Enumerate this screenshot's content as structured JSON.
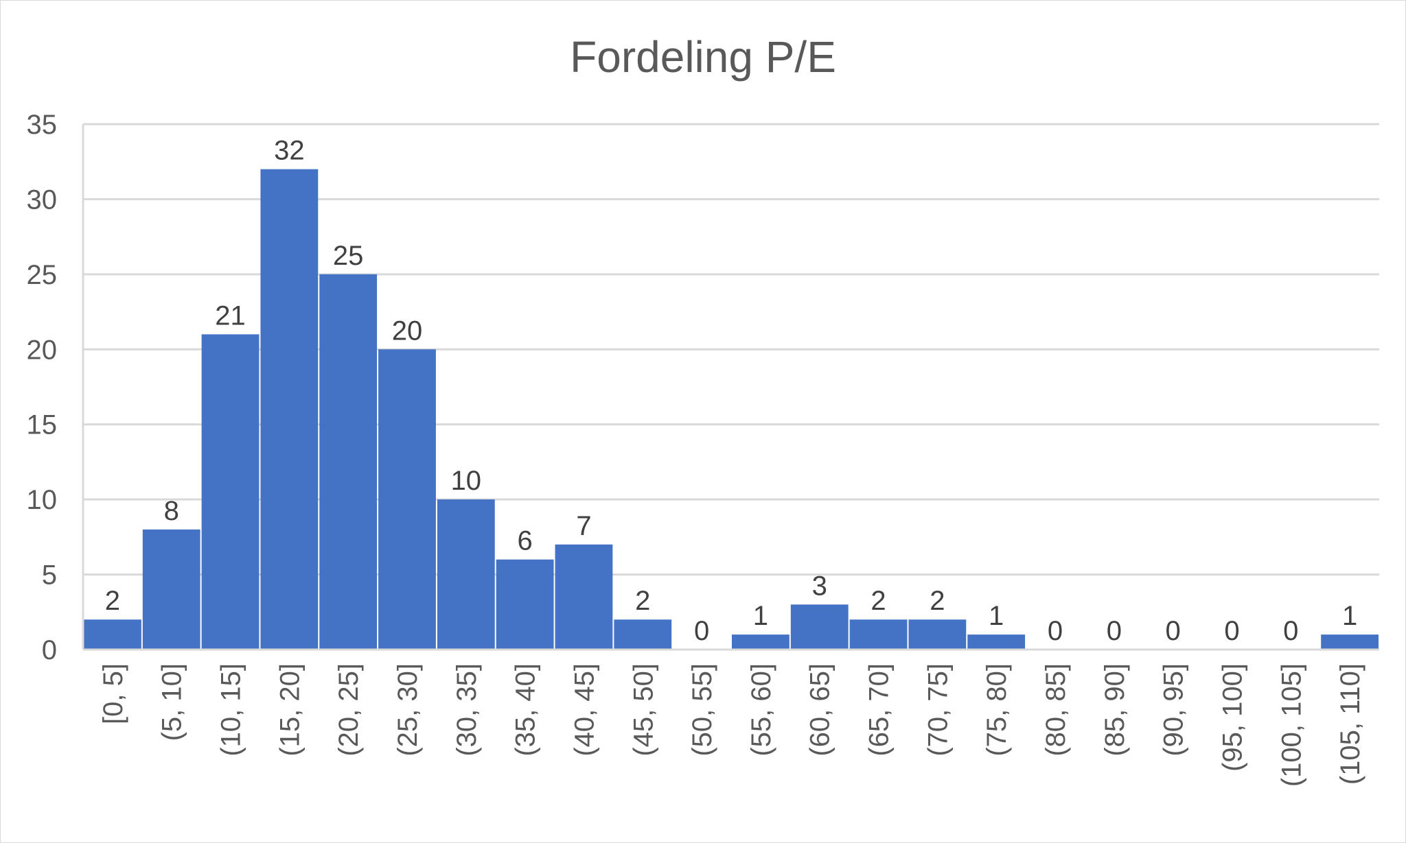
{
  "chart_data": {
    "type": "bar",
    "title": "Fordeling P/E",
    "xlabel": "",
    "ylabel": "",
    "categories": [
      "[0, 5]",
      "(5, 10]",
      "(10, 15]",
      "(15, 20]",
      "(20, 25]",
      "(25, 30]",
      "(30, 35]",
      "(35, 40]",
      "(40, 45]",
      "(45, 50]",
      "(50, 55]",
      "(55, 60]",
      "(60, 65]",
      "(65, 70]",
      "(70, 75]",
      "(75, 80]",
      "(80, 85]",
      "(85, 90]",
      "(90, 95]",
      "(95, 100]",
      "(100, 105]",
      "(105, 110]"
    ],
    "values": [
      2,
      8,
      21,
      32,
      25,
      20,
      10,
      6,
      7,
      2,
      0,
      1,
      3,
      2,
      2,
      1,
      0,
      0,
      0,
      0,
      0,
      1
    ],
    "ylim": [
      0,
      35
    ],
    "yticks": [
      0,
      5,
      10,
      15,
      20,
      25,
      30,
      35
    ],
    "grid": true,
    "legend": "none",
    "data_labels": true,
    "bar_color": "#4472C4",
    "gridline_color": "#D9D9D9",
    "text_color": "#595959"
  }
}
